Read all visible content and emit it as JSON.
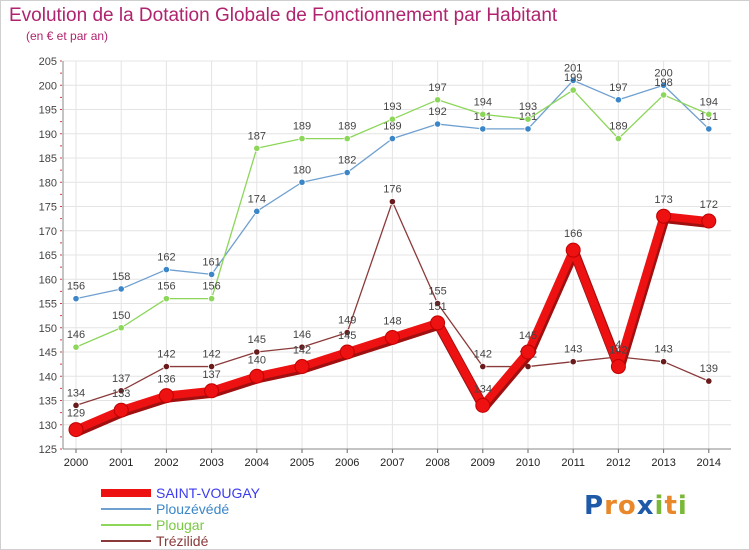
{
  "header": {
    "title": "Evolution de la Dotation Globale de Fonctionnement par Habitant",
    "subtitle": "(en € et par an)"
  },
  "logo": {
    "text": "Proxiti",
    "letters": [
      {
        "ch": "P",
        "color": "#1e5aa8"
      },
      {
        "ch": "r",
        "color": "#e8882a"
      },
      {
        "ch": "o",
        "color": "#e8882a"
      },
      {
        "ch": "x",
        "color": "#1e5aa8"
      },
      {
        "ch": "i",
        "color": "#7ab83a"
      },
      {
        "ch": "t",
        "color": "#e8882a"
      },
      {
        "ch": "i",
        "color": "#7ab83a"
      }
    ]
  },
  "chart_data": {
    "type": "line",
    "x": [
      2000,
      2001,
      2002,
      2003,
      2004,
      2005,
      2006,
      2007,
      2008,
      2009,
      2010,
      2011,
      2012,
      2013,
      2014
    ],
    "ylim": [
      125,
      205
    ],
    "yticks": [
      125,
      130,
      135,
      140,
      145,
      150,
      155,
      160,
      165,
      170,
      175,
      180,
      185,
      190,
      195,
      200,
      205
    ],
    "grid": true,
    "legend_position": "bottom-left",
    "series": [
      {
        "name": "SAINT-VOUGAY",
        "color": "#ee1111",
        "legend_color": "#3c3cee",
        "style": "thick",
        "values": [
          129,
          133,
          136,
          137,
          140,
          142,
          145,
          148,
          151,
          134,
          145,
          166,
          142,
          173,
          172
        ]
      },
      {
        "name": "Plouzévédé",
        "color": "#6fa0d0",
        "marker": "#3a86c8",
        "legend_color": "#3a86c8",
        "style": "thin",
        "values": [
          156,
          158,
          162,
          161,
          174,
          180,
          182,
          189,
          192,
          191,
          191,
          201,
          197,
          200,
          191
        ]
      },
      {
        "name": "Plougar",
        "color": "#8cd65a",
        "marker": "#8cd65a",
        "legend_color": "#7ac843",
        "style": "thin",
        "values": [
          146,
          150,
          156,
          156,
          187,
          189,
          189,
          193,
          197,
          194,
          193,
          199,
          189,
          198,
          194
        ]
      },
      {
        "name": "Trézilidé",
        "color": "#8b3a3a",
        "marker": "#6a1a1a",
        "legend_color": "#8b3a3a",
        "style": "thin",
        "values": [
          134,
          137,
          142,
          142,
          145,
          146,
          149,
          176,
          155,
          142,
          142,
          143,
          144,
          143,
          139
        ]
      }
    ]
  }
}
